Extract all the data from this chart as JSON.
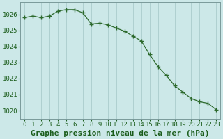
{
  "x": [
    0,
    1,
    2,
    3,
    4,
    5,
    6,
    7,
    8,
    9,
    10,
    11,
    12,
    13,
    14,
    15,
    16,
    17,
    18,
    19,
    20,
    21,
    22,
    23
  ],
  "y": [
    1025.8,
    1025.9,
    1025.8,
    1025.9,
    1026.2,
    1026.3,
    1026.3,
    1026.1,
    1025.4,
    1025.45,
    1025.35,
    1025.15,
    1024.95,
    1024.65,
    1024.35,
    1023.5,
    1022.75,
    1022.2,
    1021.55,
    1021.15,
    1020.75,
    1020.55,
    1020.45,
    1020.05
  ],
  "line_color": "#2d6a2d",
  "marker": "+",
  "bg_color": "#cce8e8",
  "grid_color": "#aacccc",
  "xlabel": "Graphe pression niveau de la mer (hPa)",
  "xlabel_fontsize": 8,
  "tick_fontsize": 6.5,
  "ylim": [
    1019.5,
    1026.75
  ],
  "yticks": [
    1020,
    1021,
    1022,
    1023,
    1024,
    1025,
    1026
  ],
  "xticks": [
    0,
    1,
    2,
    3,
    4,
    5,
    6,
    7,
    8,
    9,
    10,
    11,
    12,
    13,
    14,
    15,
    16,
    17,
    18,
    19,
    20,
    21,
    22,
    23
  ],
  "spine_color": "#7a9a9a",
  "text_color": "#1a5c1a"
}
